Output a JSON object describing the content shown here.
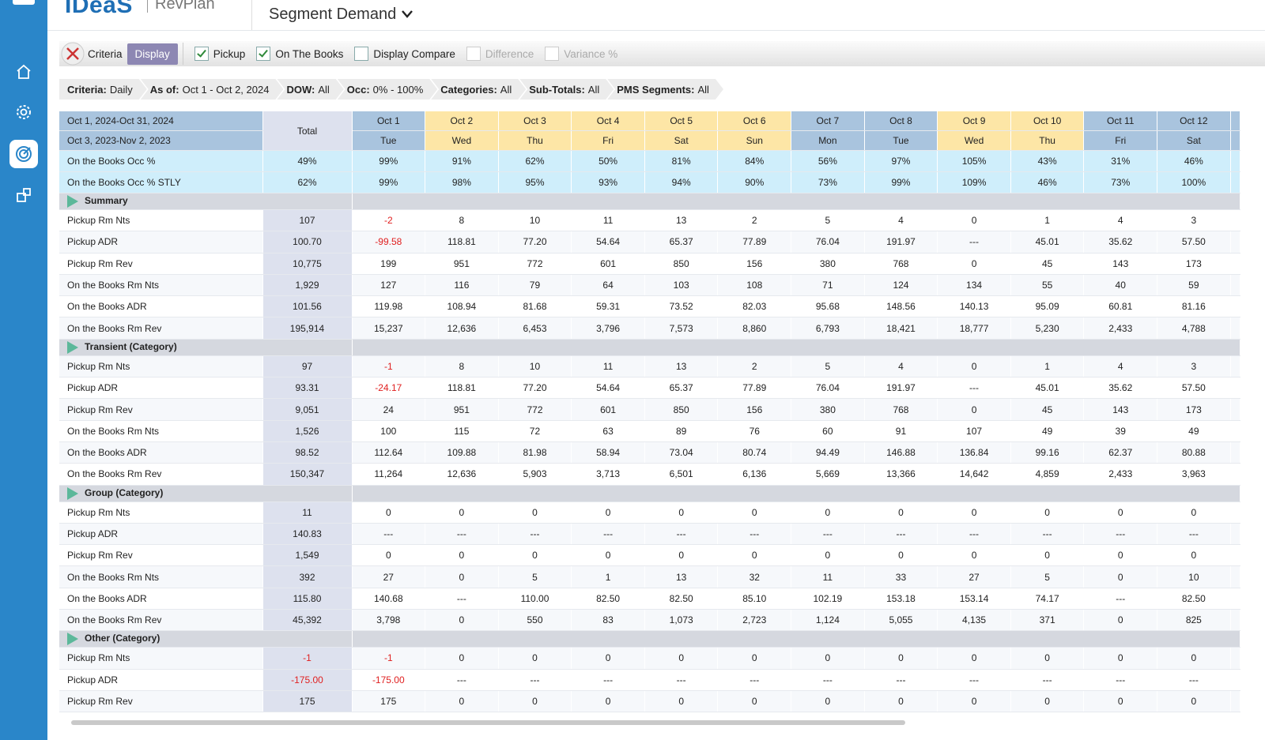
{
  "header": {
    "logo": "IDeaS",
    "product": "RevPlan",
    "page_title": "Segment Demand"
  },
  "toolbar": {
    "criteria": "Criteria",
    "display": "Display",
    "options": [
      {
        "label": "Pickup",
        "checked": true,
        "enabled": true
      },
      {
        "label": "On The Books",
        "checked": true,
        "enabled": true
      },
      {
        "label": "Display Compare",
        "checked": false,
        "enabled": true
      },
      {
        "label": "Difference",
        "checked": false,
        "enabled": false
      },
      {
        "label": "Variance %",
        "checked": false,
        "enabled": false
      }
    ]
  },
  "criteria_bar": [
    {
      "key": "Criteria:",
      "value": "Daily"
    },
    {
      "key": "As of:",
      "value": "Oct 1 - Oct 2, 2024"
    },
    {
      "key": "DOW:",
      "value": "All"
    },
    {
      "key": "Occ:",
      "value": "0% - 100%"
    },
    {
      "key": "Categories:",
      "value": "All"
    },
    {
      "key": "Sub-Totals:",
      "value": "All"
    },
    {
      "key": "PMS Segments:",
      "value": "All"
    }
  ],
  "table": {
    "date_ranges": [
      "Oct 1, 2024-Oct 31, 2024",
      "Oct 3, 2023-Nov 2, 2023"
    ],
    "total_label": "Total",
    "days": [
      {
        "date": "Oct 1",
        "dow": "Tue",
        "highlight": false
      },
      {
        "date": "Oct 2",
        "dow": "Wed",
        "highlight": true
      },
      {
        "date": "Oct 3",
        "dow": "Thu",
        "highlight": true
      },
      {
        "date": "Oct 4",
        "dow": "Fri",
        "highlight": true
      },
      {
        "date": "Oct 5",
        "dow": "Sat",
        "highlight": true
      },
      {
        "date": "Oct 6",
        "dow": "Sun",
        "highlight": true
      },
      {
        "date": "Oct 7",
        "dow": "Mon",
        "highlight": false
      },
      {
        "date": "Oct 8",
        "dow": "Tue",
        "highlight": false
      },
      {
        "date": "Oct 9",
        "dow": "Wed",
        "highlight": true
      },
      {
        "date": "Oct 10",
        "dow": "Thu",
        "highlight": true
      },
      {
        "date": "Oct 11",
        "dow": "Fri",
        "highlight": false
      },
      {
        "date": "Oct 12",
        "dow": "Sat",
        "highlight": false
      }
    ],
    "occupancy_rows": [
      {
        "label": "On the Books Occ %",
        "total": "49%",
        "values": [
          "99%",
          "91%",
          "62%",
          "50%",
          "81%",
          "84%",
          "56%",
          "97%",
          "105%",
          "43%",
          "31%",
          "46%"
        ]
      },
      {
        "label": "On the Books Occ % STLY",
        "total": "62%",
        "values": [
          "99%",
          "98%",
          "95%",
          "93%",
          "94%",
          "90%",
          "73%",
          "99%",
          "109%",
          "46%",
          "73%",
          "100%"
        ]
      }
    ],
    "sections": [
      {
        "name": "Summary",
        "rows": [
          {
            "label": "Pickup Rm Nts",
            "total": "107",
            "values": [
              "-2",
              "8",
              "10",
              "11",
              "13",
              "2",
              "5",
              "4",
              "0",
              "1",
              "4",
              "3"
            ]
          },
          {
            "label": "Pickup ADR",
            "total": "100.70",
            "values": [
              "-99.58",
              "118.81",
              "77.20",
              "54.64",
              "65.37",
              "77.89",
              "76.04",
              "191.97",
              "---",
              "45.01",
              "35.62",
              "57.50"
            ]
          },
          {
            "label": "Pickup Rm Rev",
            "total": "10,775",
            "values": [
              "199",
              "951",
              "772",
              "601",
              "850",
              "156",
              "380",
              "768",
              "0",
              "45",
              "143",
              "173"
            ]
          },
          {
            "label": "On the Books Rm Nts",
            "total": "1,929",
            "values": [
              "127",
              "116",
              "79",
              "64",
              "103",
              "108",
              "71",
              "124",
              "134",
              "55",
              "40",
              "59"
            ]
          },
          {
            "label": "On the Books ADR",
            "total": "101.56",
            "values": [
              "119.98",
              "108.94",
              "81.68",
              "59.31",
              "73.52",
              "82.03",
              "95.68",
              "148.56",
              "140.13",
              "95.09",
              "60.81",
              "81.16"
            ]
          },
          {
            "label": "On the Books Rm Rev",
            "total": "195,914",
            "values": [
              "15,237",
              "12,636",
              "6,453",
              "3,796",
              "7,573",
              "8,860",
              "6,793",
              "18,421",
              "18,777",
              "5,230",
              "2,433",
              "4,788"
            ]
          }
        ]
      },
      {
        "name": "Transient (Category)",
        "rows": [
          {
            "label": "Pickup Rm Nts",
            "total": "97",
            "values": [
              "-1",
              "8",
              "10",
              "11",
              "13",
              "2",
              "5",
              "4",
              "0",
              "1",
              "4",
              "3"
            ]
          },
          {
            "label": "Pickup ADR",
            "total": "93.31",
            "values": [
              "-24.17",
              "118.81",
              "77.20",
              "54.64",
              "65.37",
              "77.89",
              "76.04",
              "191.97",
              "---",
              "45.01",
              "35.62",
              "57.50"
            ]
          },
          {
            "label": "Pickup Rm Rev",
            "total": "9,051",
            "values": [
              "24",
              "951",
              "772",
              "601",
              "850",
              "156",
              "380",
              "768",
              "0",
              "45",
              "143",
              "173"
            ]
          },
          {
            "label": "On the Books Rm Nts",
            "total": "1,526",
            "values": [
              "100",
              "115",
              "72",
              "63",
              "89",
              "76",
              "60",
              "91",
              "107",
              "49",
              "39",
              "49"
            ]
          },
          {
            "label": "On the Books ADR",
            "total": "98.52",
            "values": [
              "112.64",
              "109.88",
              "81.98",
              "58.94",
              "73.04",
              "80.74",
              "94.49",
              "146.88",
              "136.84",
              "99.16",
              "62.37",
              "80.88"
            ]
          },
          {
            "label": "On the Books Rm Rev",
            "total": "150,347",
            "values": [
              "11,264",
              "12,636",
              "5,903",
              "3,713",
              "6,501",
              "6,136",
              "5,669",
              "13,366",
              "14,642",
              "4,859",
              "2,433",
              "3,963"
            ]
          }
        ]
      },
      {
        "name": "Group (Category)",
        "rows": [
          {
            "label": "Pickup Rm Nts",
            "total": "11",
            "values": [
              "0",
              "0",
              "0",
              "0",
              "0",
              "0",
              "0",
              "0",
              "0",
              "0",
              "0",
              "0"
            ]
          },
          {
            "label": "Pickup ADR",
            "total": "140.83",
            "values": [
              "---",
              "---",
              "---",
              "---",
              "---",
              "---",
              "---",
              "---",
              "---",
              "---",
              "---",
              "---"
            ]
          },
          {
            "label": "Pickup Rm Rev",
            "total": "1,549",
            "values": [
              "0",
              "0",
              "0",
              "0",
              "0",
              "0",
              "0",
              "0",
              "0",
              "0",
              "0",
              "0"
            ]
          },
          {
            "label": "On the Books Rm Nts",
            "total": "392",
            "values": [
              "27",
              "0",
              "5",
              "1",
              "13",
              "32",
              "11",
              "33",
              "27",
              "5",
              "0",
              "10"
            ]
          },
          {
            "label": "On the Books ADR",
            "total": "115.80",
            "values": [
              "140.68",
              "---",
              "110.00",
              "82.50",
              "82.50",
              "85.10",
              "102.19",
              "153.18",
              "153.14",
              "74.17",
              "---",
              "82.50"
            ]
          },
          {
            "label": "On the Books Rm Rev",
            "total": "45,392",
            "values": [
              "3,798",
              "0",
              "550",
              "83",
              "1,073",
              "2,723",
              "1,124",
              "5,055",
              "4,135",
              "371",
              "0",
              "825"
            ]
          }
        ]
      },
      {
        "name": "Other (Category)",
        "rows": [
          {
            "label": "Pickup Rm Nts",
            "total": "-1",
            "values": [
              "-1",
              "0",
              "0",
              "0",
              "0",
              "0",
              "0",
              "0",
              "0",
              "0",
              "0",
              "0"
            ]
          },
          {
            "label": "Pickup ADR",
            "total": "-175.00",
            "values": [
              "-175.00",
              "---",
              "---",
              "---",
              "---",
              "---",
              "---",
              "---",
              "---",
              "---",
              "---",
              "---"
            ]
          },
          {
            "label": "Pickup Rm Rev",
            "total": "175",
            "values": [
              "175",
              "0",
              "0",
              "0",
              "0",
              "0",
              "0",
              "0",
              "0",
              "0",
              "0",
              "0"
            ]
          }
        ]
      }
    ]
  }
}
